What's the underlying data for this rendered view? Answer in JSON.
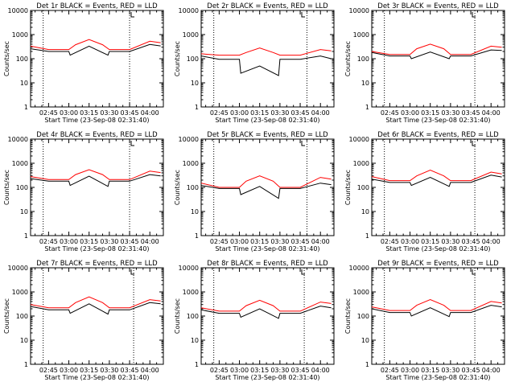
{
  "figure": {
    "start_time_label": "Start Time (23-Sep-08 02:31:40)",
    "ylabel": "Counts/sec",
    "colors": {
      "events": "#000000",
      "lld": "#ff0000",
      "axes": "#000000",
      "background": "#ffffff"
    }
  },
  "chart_data": [
    {
      "type": "line",
      "title": "Det 1r BLACK = Events, RED = LLD",
      "xlabel": "Start Time (23-Sep-08 02:31:40)",
      "ylabel": "Counts/sec",
      "yscale": "log",
      "ylim": [
        1,
        10000
      ],
      "xlim": [
        "02:31:40",
        "04:10:00"
      ],
      "xticks": [
        "02:45",
        "03:00",
        "03:15",
        "03:30",
        "03:45",
        "04:00"
      ],
      "yticks": [
        "1",
        "10",
        "100",
        "1000",
        "10000"
      ],
      "vlines": [
        "02:41",
        "03:45"
      ],
      "series": [
        {
          "name": "LLD",
          "color": "#ff0000",
          "x": [
            "02:31:40",
            "02:45",
            "03:00",
            "03:05",
            "03:15",
            "03:25",
            "03:30",
            "03:45",
            "04:00",
            "04:08"
          ],
          "y": [
            330,
            240,
            240,
            380,
            620,
            380,
            240,
            240,
            530,
            460
          ]
        },
        {
          "name": "Events",
          "color": "#000000",
          "x": [
            "02:31:40",
            "02:45",
            "03:00",
            "03:01",
            "03:15",
            "03:29",
            "03:30",
            "03:45",
            "04:00",
            "04:08"
          ],
          "y": [
            260,
            200,
            200,
            140,
            330,
            140,
            200,
            200,
            390,
            340
          ]
        }
      ]
    },
    {
      "type": "line",
      "title": "Det 2r BLACK = Events, RED = LLD",
      "xlabel": "Start Time (23-Sep-08 02:31:40)",
      "ylabel": "Counts/sec",
      "yscale": "log",
      "ylim": [
        1,
        10000
      ],
      "xlim": [
        "02:31:40",
        "04:10:00"
      ],
      "xticks": [
        "02:45",
        "03:00",
        "03:15",
        "03:30",
        "03:45",
        "04:00"
      ],
      "yticks": [
        "1",
        "10",
        "100",
        "1000",
        "10000"
      ],
      "vlines": [
        "02:41",
        "03:50"
      ],
      "series": [
        {
          "name": "LLD",
          "color": "#ff0000",
          "x": [
            "02:31:40",
            "02:45",
            "03:00",
            "03:05",
            "03:15",
            "03:25",
            "03:30",
            "03:45",
            "04:00",
            "04:08"
          ],
          "y": [
            160,
            140,
            140,
            180,
            280,
            180,
            140,
            140,
            240,
            210
          ]
        },
        {
          "name": "Events",
          "color": "#000000",
          "x": [
            "02:31:40",
            "02:45",
            "03:00",
            "03:01",
            "03:15",
            "03:29",
            "03:30",
            "03:45",
            "04:00",
            "04:08"
          ],
          "y": [
            130,
            95,
            95,
            25,
            50,
            20,
            95,
            95,
            130,
            100
          ]
        }
      ]
    },
    {
      "type": "line",
      "title": "Det 3r BLACK = Events, RED = LLD",
      "xlabel": "Start Time (23-Sep-08 02:31:40)",
      "ylabel": "Counts/sec",
      "yscale": "log",
      "ylim": [
        1,
        10000
      ],
      "xlim": [
        "02:31:40",
        "04:10:00"
      ],
      "xticks": [
        "02:45",
        "03:00",
        "03:15",
        "03:30",
        "03:45",
        "04:00"
      ],
      "yticks": [
        "1",
        "10",
        "100",
        "1000",
        "10000"
      ],
      "vlines": [
        "02:41",
        "03:48"
      ],
      "series": [
        {
          "name": "LLD",
          "color": "#ff0000",
          "x": [
            "02:31:40",
            "02:45",
            "03:00",
            "03:05",
            "03:15",
            "03:25",
            "03:30",
            "03:45",
            "04:00",
            "04:08"
          ],
          "y": [
            200,
            150,
            150,
            260,
            400,
            260,
            150,
            150,
            330,
            300
          ]
        },
        {
          "name": "Events",
          "color": "#000000",
          "x": [
            "02:31:40",
            "02:45",
            "03:00",
            "03:01",
            "03:15",
            "03:29",
            "03:30",
            "03:45",
            "04:00",
            "04:08"
          ],
          "y": [
            180,
            130,
            130,
            100,
            190,
            100,
            130,
            130,
            230,
            220
          ]
        }
      ]
    },
    {
      "type": "line",
      "title": "Det 4r BLACK = Events, RED = LLD",
      "xlabel": "Start Time (23-Sep-08 02:31:40)",
      "ylabel": "Counts/sec",
      "yscale": "log",
      "ylim": [
        1,
        10000
      ],
      "xlim": [
        "02:31:40",
        "04:10:00"
      ],
      "xticks": [
        "02:45",
        "03:00",
        "03:15",
        "03:30",
        "03:45",
        "04:00"
      ],
      "yticks": [
        "1",
        "10",
        "100",
        "1000",
        "10000"
      ],
      "vlines": [
        "02:41",
        "03:45"
      ],
      "series": [
        {
          "name": "LLD",
          "color": "#ff0000",
          "x": [
            "02:31:40",
            "02:45",
            "03:00",
            "03:05",
            "03:15",
            "03:25",
            "03:30",
            "03:45",
            "04:00",
            "04:08"
          ],
          "y": [
            280,
            210,
            210,
            340,
            540,
            340,
            210,
            210,
            470,
            410
          ]
        },
        {
          "name": "Events",
          "color": "#000000",
          "x": [
            "02:31:40",
            "02:45",
            "03:00",
            "03:01",
            "03:15",
            "03:29",
            "03:30",
            "03:45",
            "04:00",
            "04:08"
          ],
          "y": [
            230,
            180,
            180,
            120,
            290,
            110,
            180,
            180,
            340,
            300
          ]
        }
      ]
    },
    {
      "type": "line",
      "title": "Det 5r BLACK = Events, RED = LLD",
      "xlabel": "Start Time (23-Sep-08 02:31:40)",
      "ylabel": "Counts/sec",
      "yscale": "log",
      "ylim": [
        1,
        10000
      ],
      "xlim": [
        "02:31:40",
        "04:10:00"
      ],
      "xticks": [
        "02:45",
        "03:00",
        "03:15",
        "03:30",
        "03:45",
        "04:00"
      ],
      "yticks": [
        "1",
        "10",
        "100",
        "1000",
        "10000"
      ],
      "vlines": [
        "02:41",
        "03:50"
      ],
      "series": [
        {
          "name": "LLD",
          "color": "#ff0000",
          "x": [
            "02:31:40",
            "02:45",
            "03:00",
            "03:05",
            "03:15",
            "03:25",
            "03:30",
            "03:45",
            "04:00",
            "04:08"
          ],
          "y": [
            150,
            100,
            100,
            180,
            300,
            180,
            100,
            100,
            260,
            220
          ]
        },
        {
          "name": "Events",
          "color": "#000000",
          "x": [
            "02:31:40",
            "02:45",
            "03:00",
            "03:01",
            "03:15",
            "03:29",
            "03:30",
            "03:45",
            "04:00",
            "04:08"
          ],
          "y": [
            120,
            90,
            90,
            50,
            110,
            35,
            90,
            90,
            150,
            130
          ]
        }
      ]
    },
    {
      "type": "line",
      "title": "Det 6r BLACK = Events, RED = LLD",
      "xlabel": "Start Time (23-Sep-08 02:31:40)",
      "ylabel": "Counts/sec",
      "yscale": "log",
      "ylim": [
        1,
        10000
      ],
      "xlim": [
        "02:31:40",
        "04:10:00"
      ],
      "xticks": [
        "02:45",
        "03:00",
        "03:15",
        "03:30",
        "03:45",
        "04:00"
      ],
      "yticks": [
        "1",
        "10",
        "100",
        "1000",
        "10000"
      ],
      "vlines": [
        "02:41",
        "03:48"
      ],
      "series": [
        {
          "name": "LLD",
          "color": "#ff0000",
          "x": [
            "02:31:40",
            "02:45",
            "03:00",
            "03:05",
            "03:15",
            "03:25",
            "03:30",
            "03:45",
            "04:00",
            "04:08"
          ],
          "y": [
            280,
            190,
            190,
            300,
            520,
            300,
            190,
            190,
            430,
            360
          ]
        },
        {
          "name": "Events",
          "color": "#000000",
          "x": [
            "02:31:40",
            "02:45",
            "03:00",
            "03:01",
            "03:15",
            "03:29",
            "03:30",
            "03:45",
            "04:00",
            "04:08"
          ],
          "y": [
            220,
            160,
            160,
            120,
            260,
            110,
            160,
            160,
            320,
            270
          ]
        }
      ]
    },
    {
      "type": "line",
      "title": "Det 7r BLACK = Events, RED = LLD",
      "xlabel": "Start Time (23-Sep-08 02:31:40)",
      "ylabel": "Counts/sec",
      "yscale": "log",
      "ylim": [
        1,
        10000
      ],
      "xlim": [
        "02:31:40",
        "04:10:00"
      ],
      "xticks": [
        "02:45",
        "03:00",
        "03:15",
        "03:30",
        "03:45",
        "04:00"
      ],
      "yticks": [
        "1",
        "10",
        "100",
        "1000",
        "10000"
      ],
      "vlines": [
        "02:41",
        "03:48"
      ],
      "series": [
        {
          "name": "LLD",
          "color": "#ff0000",
          "x": [
            "02:31:40",
            "02:45",
            "03:00",
            "03:05",
            "03:15",
            "03:25",
            "03:30",
            "03:45",
            "04:00",
            "04:08"
          ],
          "y": [
            300,
            220,
            220,
            360,
            620,
            360,
            220,
            220,
            480,
            420
          ]
        },
        {
          "name": "Events",
          "color": "#000000",
          "x": [
            "02:31:40",
            "02:45",
            "03:00",
            "03:01",
            "03:15",
            "03:29",
            "03:30",
            "03:45",
            "04:00",
            "04:08"
          ],
          "y": [
            250,
            180,
            180,
            130,
            320,
            120,
            180,
            180,
            360,
            320
          ]
        }
      ]
    },
    {
      "type": "line",
      "title": "Det 8r BLACK = Events, RED = LLD",
      "xlabel": "Start Time (23-Sep-08 02:31:40)",
      "ylabel": "Counts/sec",
      "yscale": "log",
      "ylim": [
        1,
        10000
      ],
      "xlim": [
        "02:31:40",
        "04:10:00"
      ],
      "xticks": [
        "02:45",
        "03:00",
        "03:15",
        "03:30",
        "03:45",
        "04:00"
      ],
      "yticks": [
        "1",
        "10",
        "100",
        "1000",
        "10000"
      ],
      "vlines": [
        "02:41",
        "03:48"
      ],
      "series": [
        {
          "name": "LLD",
          "color": "#ff0000",
          "x": [
            "02:31:40",
            "02:45",
            "03:00",
            "03:05",
            "03:15",
            "03:25",
            "03:30",
            "03:45",
            "04:00",
            "04:08"
          ],
          "y": [
            220,
            160,
            160,
            270,
            450,
            270,
            160,
            160,
            380,
            330
          ]
        },
        {
          "name": "Events",
          "color": "#000000",
          "x": [
            "02:31:40",
            "02:45",
            "03:00",
            "03:01",
            "03:15",
            "03:29",
            "03:30",
            "03:45",
            "04:00",
            "04:08"
          ],
          "y": [
            180,
            130,
            130,
            90,
            200,
            80,
            130,
            130,
            260,
            220
          ]
        }
      ]
    },
    {
      "type": "line",
      "title": "Det 9r BLACK = Events, RED = LLD",
      "xlabel": "Start Time (23-Sep-08 02:31:40)",
      "ylabel": "Counts/sec",
      "yscale": "log",
      "ylim": [
        1,
        10000
      ],
      "xlim": [
        "02:31:40",
        "04:10:00"
      ],
      "xticks": [
        "02:45",
        "03:00",
        "03:15",
        "03:30",
        "03:45",
        "04:00"
      ],
      "yticks": [
        "1",
        "10",
        "100",
        "1000",
        "10000"
      ],
      "vlines": [
        "02:41",
        "03:48"
      ],
      "series": [
        {
          "name": "LLD",
          "color": "#ff0000",
          "x": [
            "02:31:40",
            "02:45",
            "03:00",
            "03:05",
            "03:15",
            "03:25",
            "03:30",
            "03:45",
            "04:00",
            "04:08"
          ],
          "y": [
            240,
            170,
            170,
            280,
            480,
            280,
            170,
            170,
            400,
            350
          ]
        },
        {
          "name": "Events",
          "color": "#000000",
          "x": [
            "02:31:40",
            "02:45",
            "03:00",
            "03:01",
            "03:15",
            "03:29",
            "03:30",
            "03:45",
            "04:00",
            "04:08"
          ],
          "y": [
            200,
            140,
            140,
            100,
            220,
            95,
            140,
            140,
            280,
            240
          ]
        }
      ]
    }
  ]
}
